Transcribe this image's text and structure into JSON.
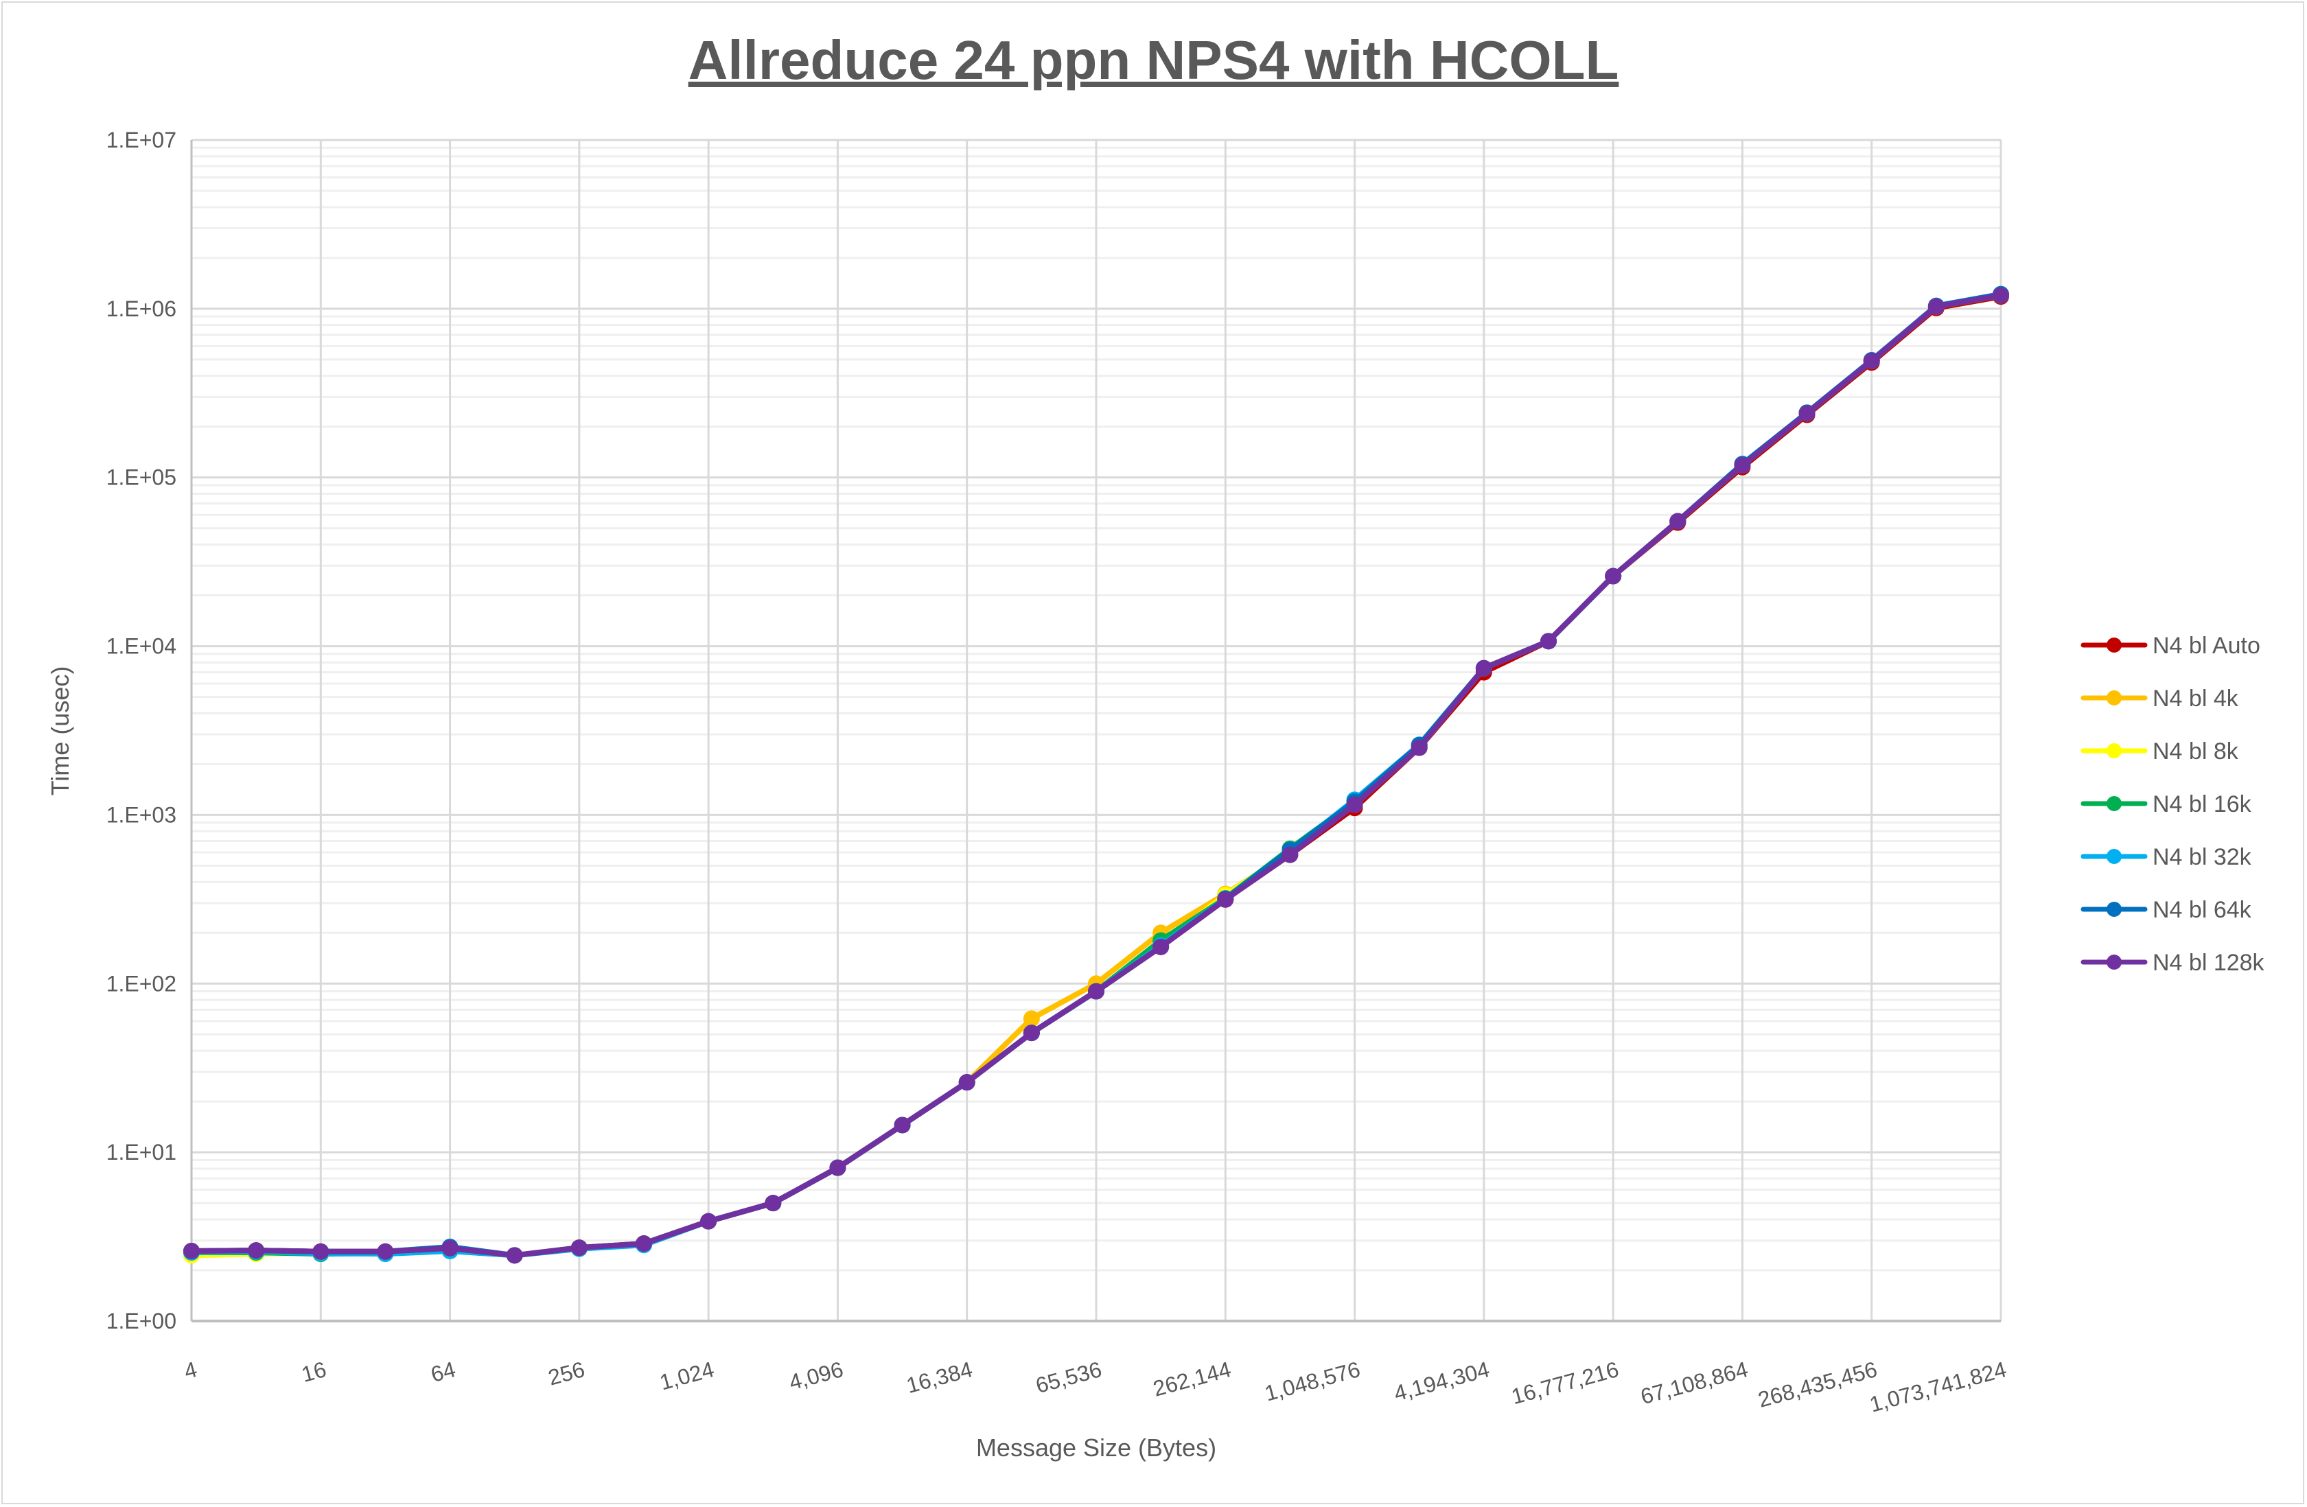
{
  "chart_data": {
    "type": "line",
    "title": "Allreduce 24 ppn NPS4 with HCOLL",
    "xlabel": "Message Size (Bytes)",
    "ylabel": "Time (usec)",
    "x_scale": "log2",
    "y_scale": "log10",
    "ylim": [
      1,
      10000000
    ],
    "grid": true,
    "legend_position": "right",
    "x": [
      4,
      8,
      16,
      32,
      64,
      128,
      256,
      512,
      1024,
      2048,
      4096,
      8192,
      16384,
      32768,
      65536,
      131072,
      262144,
      524288,
      1048576,
      2097152,
      4194304,
      8388608,
      16777216,
      33554432,
      67108864,
      134217728,
      268435456,
      536870912,
      1073741824
    ],
    "x_tick_labels": [
      "4",
      "16",
      "64",
      "256",
      "1,024",
      "4,096",
      "16,384",
      "65,536",
      "262,144",
      "1,048,576",
      "4,194,304",
      "16,777,216",
      "67,108,864",
      "268,435,456",
      "1,073,741,824"
    ],
    "y_tick_labels": [
      "1.E+00",
      "1.E+01",
      "1.E+02",
      "1.E+03",
      "1.E+04",
      "1.E+05",
      "1.E+06",
      "1.E+07"
    ],
    "series": [
      {
        "name": "N4 bl Auto",
        "color": "#c00000",
        "values": [
          2.6,
          2.62,
          2.58,
          2.58,
          2.7,
          2.45,
          2.72,
          2.88,
          3.9,
          5.0,
          8.1,
          14.5,
          26,
          51,
          90,
          165,
          315,
          580,
          1100,
          2500,
          7000,
          10700,
          26000,
          54000,
          115000,
          235000,
          480000,
          1010000,
          1180000
        ]
      },
      {
        "name": "N4 bl 4k",
        "color": "#ffc000",
        "values": [
          2.5,
          2.55,
          2.55,
          2.58,
          2.7,
          2.45,
          2.72,
          2.88,
          3.9,
          5.0,
          8.1,
          14.5,
          26,
          62,
          100,
          200,
          340,
          590,
          1150,
          2500,
          7400,
          10700,
          26000,
          55000,
          118000,
          240000,
          490000,
          1030000,
          1200000
        ]
      },
      {
        "name": "N4 bl 8k",
        "color": "#ffff00",
        "values": [
          2.45,
          2.5,
          2.55,
          2.55,
          2.65,
          2.45,
          2.72,
          2.88,
          3.9,
          5.0,
          8.1,
          14.5,
          26,
          51,
          90,
          170,
          335,
          600,
          1180,
          2550,
          7400,
          10700,
          26000,
          55000,
          118000,
          240000,
          490000,
          1030000,
          1200000
        ]
      },
      {
        "name": "N4 bl 16k",
        "color": "#00b050",
        "values": [
          2.55,
          2.55,
          2.5,
          2.52,
          2.6,
          2.45,
          2.7,
          2.85,
          3.9,
          5.0,
          8.1,
          14.5,
          26,
          51,
          90,
          180,
          320,
          630,
          1200,
          2550,
          7400,
          10700,
          26000,
          55000,
          118000,
          240000,
          490000,
          1030000,
          1200000
        ]
      },
      {
        "name": "N4 bl 32k",
        "color": "#00b0f0",
        "values": [
          2.55,
          2.58,
          2.52,
          2.5,
          2.6,
          2.45,
          2.68,
          2.82,
          3.9,
          5.0,
          8.1,
          14.5,
          26,
          51,
          90,
          168,
          320,
          610,
          1230,
          2600,
          7400,
          10700,
          26000,
          55000,
          120000,
          242000,
          495000,
          1030000,
          1210000
        ]
      },
      {
        "name": "N4 bl 64k",
        "color": "#0070c0",
        "values": [
          2.6,
          2.62,
          2.58,
          2.58,
          2.75,
          2.45,
          2.72,
          2.88,
          3.9,
          5.0,
          8.1,
          14.5,
          26,
          51,
          90,
          165,
          318,
          620,
          1200,
          2600,
          7400,
          10700,
          26000,
          55000,
          120000,
          242000,
          495000,
          1040000,
          1220000
        ]
      },
      {
        "name": "N4 bl 128k",
        "color": "#7030a0",
        "values": [
          2.6,
          2.62,
          2.58,
          2.58,
          2.7,
          2.45,
          2.72,
          2.88,
          3.9,
          5.0,
          8.1,
          14.5,
          26,
          51,
          90,
          165,
          315,
          580,
          1150,
          2500,
          7400,
          10700,
          26000,
          55000,
          118000,
          240000,
          490000,
          1030000,
          1200000
        ]
      }
    ]
  }
}
